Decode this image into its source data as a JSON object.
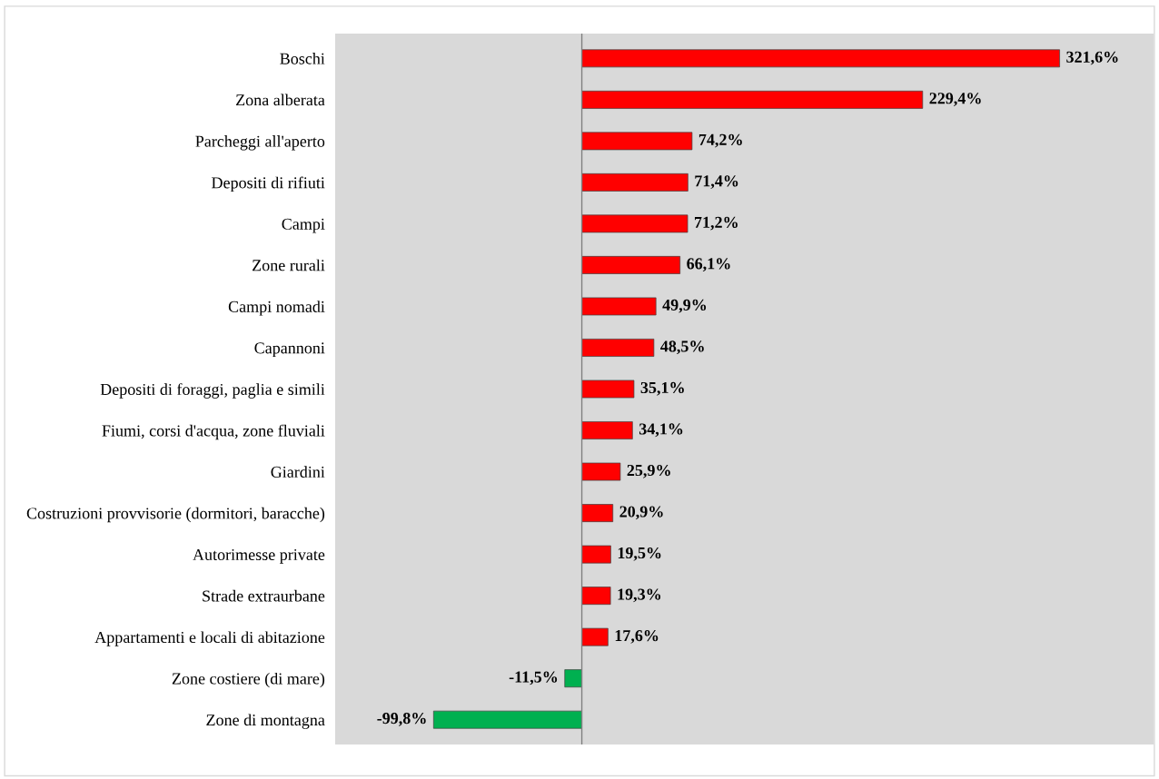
{
  "chart_data": {
    "type": "bar",
    "orientation": "horizontal",
    "data_labels": true,
    "grid": false,
    "legend": false,
    "categories": [
      "Boschi",
      "Zona alberata",
      "Parcheggi all'aperto",
      "Depositi di rifiuti",
      "Campi",
      "Zone rurali",
      "Campi nomadi",
      "Capannoni",
      "Depositi di foraggi, paglia e simili",
      "Fiumi, corsi d'acqua, zone fluviali",
      "Giardini",
      "Costruzioni provvisorie (dormitori, baracche)",
      "Autorimesse private",
      "Strade extraurbane",
      "Appartamenti e locali di abitazione",
      "Zone costiere (di mare)",
      "Zone di montagna"
    ],
    "values": [
      321.6,
      229.4,
      74.2,
      71.4,
      71.2,
      66.1,
      49.9,
      48.5,
      35.1,
      34.1,
      25.9,
      20.9,
      19.5,
      19.3,
      17.6,
      -11.5,
      -99.8
    ],
    "value_labels": [
      "321,6%",
      "229,4%",
      "74,2%",
      "71,4%",
      "71,2%",
      "66,1%",
      "49,9%",
      "48,5%",
      "35,1%",
      "34,1%",
      "25,9%",
      "20,9%",
      "19,5%",
      "19,3%",
      "17,6%",
      "-11,5%",
      "-99,8%"
    ],
    "colors": [
      "#ff0000",
      "#ff0000",
      "#ff0000",
      "#ff0000",
      "#ff0000",
      "#ff0000",
      "#ff0000",
      "#ff0000",
      "#ff0000",
      "#ff0000",
      "#ff0000",
      "#ff0000",
      "#ff0000",
      "#ff0000",
      "#ff0000",
      "#00b050",
      "#00b050"
    ]
  }
}
